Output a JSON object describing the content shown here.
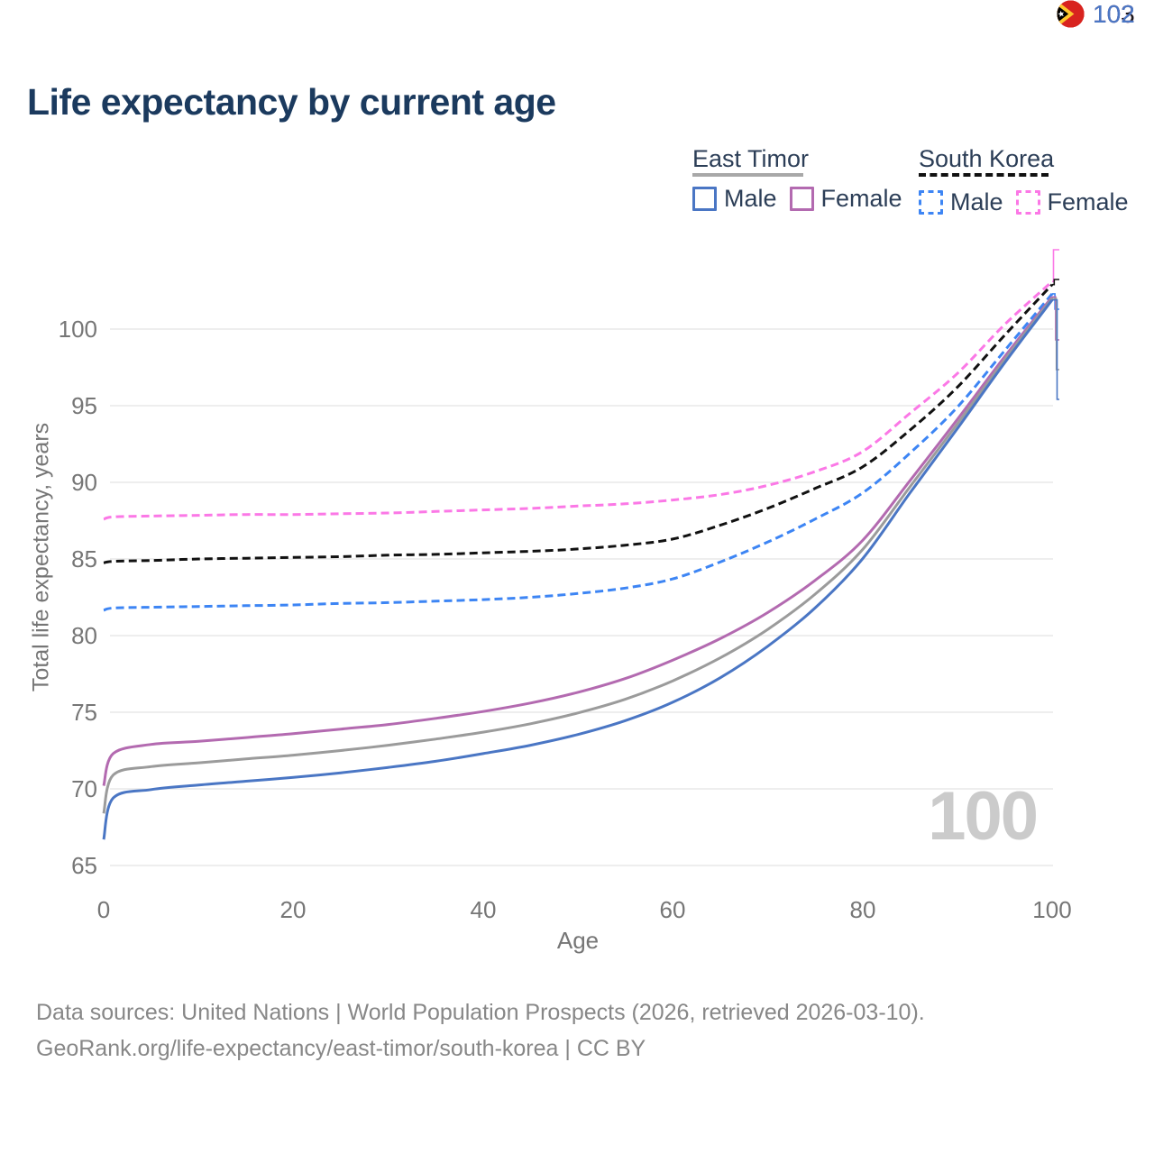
{
  "title": "Life expectancy by current age",
  "watermark": "100",
  "colors": {
    "title_text": "#1b3a5e",
    "legend_text": "#2c3e57",
    "axis_text": "#767676",
    "gridline": "#e9e9e9",
    "watermark_text": "#cbcbcb",
    "footer_text": "#878787"
  },
  "legend": {
    "groups": [
      {
        "name": "East Timor",
        "line_style": "solid",
        "underline_color": "#a8a8a8",
        "items": [
          {
            "label": "Male",
            "color": "#4a76c4"
          },
          {
            "label": "Female",
            "color": "#b36ab0"
          }
        ]
      },
      {
        "name": "South Korea",
        "line_style": "dashed",
        "underline_color": "#111111",
        "items": [
          {
            "label": "Male",
            "color": "#3d85f4"
          },
          {
            "label": "Female",
            "color": "#fb78e6"
          }
        ]
      }
    ]
  },
  "axes": {
    "x": {
      "label": "Age",
      "ticks": [
        "0",
        "20",
        "40",
        "60",
        "80",
        "100"
      ]
    },
    "y": {
      "label": "Total life expectancy, years",
      "ticks": [
        "65",
        "70",
        "75",
        "80",
        "85",
        "90",
        "95",
        "100"
      ]
    }
  },
  "end_labels": [
    {
      "flag": "south-korea-flag",
      "value": "103",
      "color": "#fb78e6"
    },
    {
      "flag": "south-korea-flag",
      "value": "103",
      "color": "#1a1a1a"
    },
    {
      "flag": "south-korea-flag",
      "value": "102",
      "color": "#3d85f4"
    },
    {
      "flag": "east-timor-flag",
      "value": "102",
      "color": "#b36ab0"
    },
    {
      "flag": "east-timor-flag",
      "value": "102",
      "color": "#9b9b9b"
    },
    {
      "flag": "east-timor-flag",
      "value": "102",
      "color": "#4a76c4"
    }
  ],
  "footer": {
    "line1": "Data sources: United Nations | World Population Prospects (2026, retrieved 2026-03-10).",
    "line2": "GeoRank.org/life-expectancy/east-timor/south-korea | CC BY"
  },
  "chart_data": {
    "type": "line",
    "title": "Life expectancy by current age",
    "xlabel": "Age",
    "ylabel": "Total life expectancy, years",
    "xlim": [
      0,
      100
    ],
    "ylim": [
      65,
      103.5
    ],
    "x_ticks": [
      0,
      20,
      40,
      60,
      80,
      100
    ],
    "y_ticks": [
      65,
      70,
      75,
      80,
      85,
      90,
      95,
      100
    ],
    "grid": "horizontal",
    "legend_position": "top-right",
    "ages": [
      0,
      1,
      5,
      10,
      15,
      20,
      25,
      30,
      35,
      40,
      45,
      50,
      55,
      60,
      65,
      70,
      75,
      80,
      85,
      90,
      95,
      100
    ],
    "series": [
      {
        "name": "South Korea Female",
        "country": "South Korea",
        "sex": "Female",
        "style": "dashed",
        "color": "#fb78e6",
        "end_label": 103,
        "values": [
          87.6,
          87.75,
          87.8,
          87.85,
          87.9,
          87.9,
          87.95,
          88.0,
          88.1,
          88.2,
          88.3,
          88.45,
          88.6,
          88.85,
          89.2,
          89.8,
          90.7,
          92.0,
          94.5,
          97.1,
          100.3,
          103.1
        ]
      },
      {
        "name": "South Korea Total",
        "country": "South Korea",
        "sex": "Both",
        "style": "dashed",
        "color": "#111111",
        "end_label": 103,
        "values": [
          84.75,
          84.85,
          84.9,
          85.0,
          85.05,
          85.1,
          85.15,
          85.25,
          85.3,
          85.4,
          85.5,
          85.65,
          85.9,
          86.3,
          87.2,
          88.3,
          89.6,
          91.0,
          93.4,
          96.2,
          99.6,
          102.9
        ]
      },
      {
        "name": "South Korea Male",
        "country": "South Korea",
        "sex": "Male",
        "style": "dashed",
        "color": "#3d85f4",
        "end_label": 102,
        "values": [
          81.65,
          81.8,
          81.85,
          81.9,
          81.95,
          82.0,
          82.1,
          82.15,
          82.25,
          82.35,
          82.5,
          82.75,
          83.1,
          83.7,
          84.8,
          86.1,
          87.6,
          89.3,
          91.9,
          94.9,
          98.6,
          102.3
        ]
      },
      {
        "name": "East Timor Female",
        "country": "East Timor",
        "sex": "Female",
        "style": "solid",
        "color": "#b36ab0",
        "end_label": 102,
        "values": [
          70.2,
          72.3,
          72.9,
          73.1,
          73.35,
          73.6,
          73.9,
          74.2,
          74.6,
          75.05,
          75.6,
          76.3,
          77.2,
          78.4,
          79.8,
          81.5,
          83.6,
          86.2,
          90.1,
          94.1,
          98.2,
          102.1
        ]
      },
      {
        "name": "East Timor Total",
        "country": "East Timor",
        "sex": "Both",
        "style": "solid",
        "color": "#9b9b9b",
        "end_label": 102,
        "values": [
          68.4,
          70.9,
          71.45,
          71.7,
          71.95,
          72.2,
          72.5,
          72.85,
          73.25,
          73.7,
          74.25,
          74.95,
          75.85,
          77.05,
          78.55,
          80.4,
          82.7,
          85.6,
          89.7,
          93.8,
          98.0,
          102.0
        ]
      },
      {
        "name": "East Timor Male",
        "country": "East Timor",
        "sex": "Male",
        "style": "solid",
        "color": "#4a76c4",
        "end_label": 102,
        "values": [
          66.7,
          69.4,
          69.95,
          70.25,
          70.5,
          70.75,
          71.05,
          71.4,
          71.8,
          72.3,
          72.85,
          73.55,
          74.45,
          75.65,
          77.25,
          79.3,
          81.8,
          85.0,
          89.3,
          93.5,
          97.8,
          101.9
        ]
      }
    ]
  }
}
